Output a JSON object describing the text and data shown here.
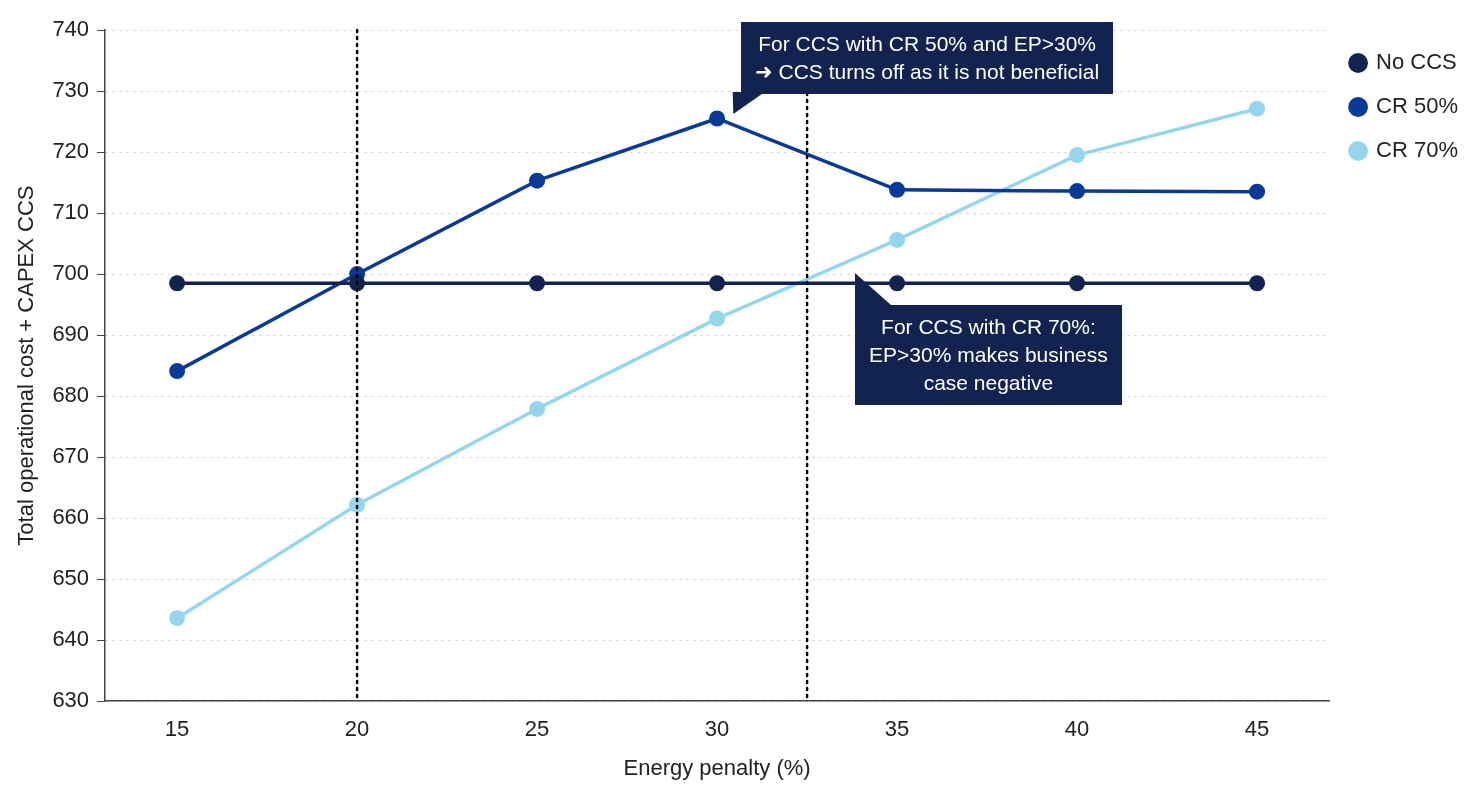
{
  "chart_data": {
    "type": "line",
    "xlabel": "Energy penalty (%)",
    "ylabel": "Total operational cost + CAPEX CCS",
    "x": [
      15,
      20,
      25,
      30,
      35,
      40,
      45
    ],
    "series": [
      {
        "name": "No CCS",
        "color": "#13234f",
        "values": [
          698.5,
          698.5,
          698.5,
          698.5,
          698.5,
          698.5,
          698.5
        ]
      },
      {
        "name": "CR 50%",
        "color": "#0a3a96",
        "values": [
          684.1,
          700,
          715.3,
          725.5,
          713.8,
          713.6,
          713.5
        ]
      },
      {
        "name": "CR 70%",
        "color": "#96d6ec",
        "values": [
          643.6,
          662.2,
          677.9,
          692.7,
          705.6,
          719.5,
          727.1
        ]
      }
    ],
    "xlim": [
      13,
      47
    ],
    "xticks": [
      15,
      20,
      25,
      30,
      35,
      40,
      45
    ],
    "ylim": [
      630,
      740
    ],
    "yticks": [
      630,
      640,
      650,
      660,
      670,
      680,
      690,
      700,
      710,
      720,
      730,
      740
    ],
    "ref_lines": [
      {
        "axis": "x",
        "value": 20,
        "color": "#000000",
        "line_style": "dotted"
      },
      {
        "axis": "x",
        "value": 32.5,
        "color": "#000000",
        "line_style": "dotted"
      }
    ],
    "annotations": [
      {
        "text": "For CCS with CR 50% and EP>30%\n➜ CCS turns off as it is not beneficial",
        "x": 30,
        "y": 725.5
      },
      {
        "text": "For CCS with CR 70%:\nEP>30% makes business\ncase negative",
        "x": 34,
        "y": 698.5
      }
    ],
    "grid": "y",
    "legend": "top right",
    "marker": "circle",
    "line_style": "solid"
  }
}
